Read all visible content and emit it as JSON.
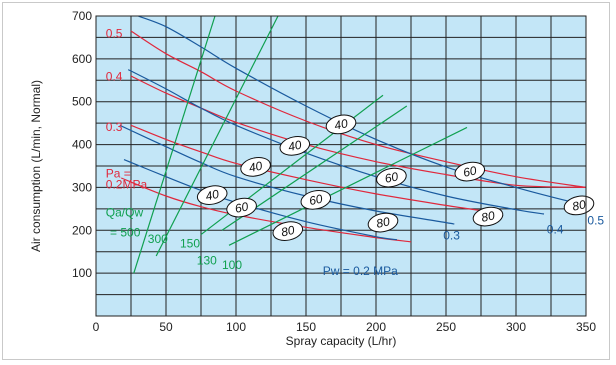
{
  "chart_data": {
    "type": "line",
    "xlabel": "Spray capacity (L/hr)",
    "ylabel": "Air consumption (L/min, Normal)",
    "xlim": [
      0,
      350
    ],
    "ylim": [
      0,
      700
    ],
    "x_ticks": [
      "0",
      "50",
      "100",
      "150",
      "200",
      "250",
      "300",
      "350"
    ],
    "y_ticks": [
      "100",
      "200",
      "300",
      "400",
      "500",
      "600",
      "700"
    ],
    "grid": true,
    "background_color": "#c3e6f7",
    "series_groups": [
      {
        "name": "Pa",
        "color": "#e0283c",
        "series": [
          {
            "name": "0.5",
            "points": [
              [
                25,
                665
              ],
              [
                50,
                612
              ],
              [
                75,
                570
              ],
              [
                100,
                525
              ],
              [
                150,
                455
              ],
              [
                200,
                400
              ],
              [
                250,
                360
              ],
              [
                300,
                325
              ],
              [
                350,
                300
              ]
            ]
          },
          {
            "name": "0.4",
            "points": [
              [
                25,
                560
              ],
              [
                50,
                520
              ],
              [
                75,
                485
              ],
              [
                100,
                452
              ],
              [
                150,
                400
              ],
              [
                200,
                360
              ],
              [
                250,
                330
              ],
              [
                300,
                305
              ],
              [
                350,
                300
              ]
            ]
          },
          {
            "name": "0.3",
            "points": [
              [
                25,
                445
              ],
              [
                50,
                412
              ],
              [
                75,
                383
              ],
              [
                100,
                356
              ],
              [
                150,
                318
              ],
              [
                200,
                285
              ],
              [
                250,
                258
              ],
              [
                275,
                246
              ]
            ]
          },
          {
            "name": "Pa = 0.2MPa",
            "points": [
              [
                18,
                322
              ],
              [
                50,
                280
              ],
              [
                75,
                255
              ],
              [
                100,
                236
              ],
              [
                150,
                207
              ],
              [
                200,
                183
              ],
              [
                225,
                173
              ]
            ]
          }
        ]
      },
      {
        "name": "Pw",
        "color": "#1a5a9e",
        "series": [
          {
            "name": "0.5",
            "points": [
              [
                30,
                700
              ],
              [
                50,
                675
              ],
              [
                75,
                628
              ],
              [
                100,
                578
              ],
              [
                150,
                490
              ],
              [
                200,
                412
              ],
              [
                250,
                348
              ],
              [
                300,
                300
              ],
              [
                335,
                270
              ],
              [
                355,
                255
              ]
            ]
          },
          {
            "name": "0.4",
            "points": [
              [
                23,
                575
              ],
              [
                50,
                530
              ],
              [
                75,
                485
              ],
              [
                100,
                445
              ],
              [
                150,
                380
              ],
              [
                200,
                325
              ],
              [
                250,
                280
              ],
              [
                300,
                248
              ],
              [
                320,
                238
              ]
            ]
          },
          {
            "name": "0.3",
            "points": [
              [
                17,
                445
              ],
              [
                50,
                395
              ],
              [
                75,
                358
              ],
              [
                100,
                325
              ],
              [
                150,
                280
              ],
              [
                200,
                245
              ],
              [
                250,
                218
              ],
              [
                255,
                215
              ]
            ]
          },
          {
            "name": "Pw = 0.2 MPa",
            "points": [
              [
                20,
                365
              ],
              [
                50,
                325
              ],
              [
                75,
                293
              ],
              [
                100,
                265
              ],
              [
                150,
                220
              ],
              [
                200,
                185
              ],
              [
                215,
                178
              ]
            ]
          }
        ]
      },
      {
        "name": "Qa/Qw",
        "color": "#10a050",
        "series": [
          {
            "name": "Qa/Qw = 500",
            "points": [
              [
                27,
                100
              ],
              [
                85,
                700
              ]
            ]
          },
          {
            "name": "300",
            "points": [
              [
                43,
                140
              ],
              [
                130,
                700
              ]
            ]
          },
          {
            "name": "150",
            "points": [
              [
                75,
                190
              ],
              [
                205,
                515
              ]
            ]
          },
          {
            "name": "130",
            "points": [
              [
                90,
                200
              ],
              [
                222,
                490
              ]
            ]
          },
          {
            "name": "100",
            "points": [
              [
                95,
                165
              ],
              [
                265,
                440
              ]
            ]
          }
        ]
      }
    ],
    "annotations": {
      "bubbles": [
        {
          "text": "40",
          "x": 175,
          "y": 447
        },
        {
          "text": "40",
          "x": 142,
          "y": 397
        },
        {
          "text": "40",
          "x": 114,
          "y": 348
        },
        {
          "text": "40",
          "x": 83,
          "y": 282
        },
        {
          "text": "60",
          "x": 104,
          "y": 253
        },
        {
          "text": "60",
          "x": 157,
          "y": 271
        },
        {
          "text": "60",
          "x": 211,
          "y": 323
        },
        {
          "text": "60",
          "x": 267,
          "y": 337
        },
        {
          "text": "80",
          "x": 137,
          "y": 198
        },
        {
          "text": "80",
          "x": 205,
          "y": 218
        },
        {
          "text": "80",
          "x": 280,
          "y": 232
        },
        {
          "text": "80",
          "x": 345,
          "y": 258
        }
      ],
      "labels": [
        {
          "text": "0.5",
          "color": "#e0283c",
          "x": 7,
          "y": 650
        },
        {
          "text": "0.4",
          "color": "#e0283c",
          "x": 7,
          "y": 550
        },
        {
          "text": "0.3",
          "color": "#e0283c",
          "x": 7,
          "y": 432
        },
        {
          "text": "Pa =",
          "color": "#e0283c",
          "x": 7,
          "y": 323
        },
        {
          "text": "0.2MPa",
          "color": "#e0283c",
          "x": 7,
          "y": 298
        },
        {
          "text": "Qa/Qw",
          "color": "#10a050",
          "x": 7,
          "y": 232
        },
        {
          "text": "= 500",
          "color": "#10a050",
          "x": 10,
          "y": 185
        },
        {
          "text": "300",
          "color": "#10a050",
          "x": 37,
          "y": 170
        },
        {
          "text": "150",
          "color": "#10a050",
          "x": 60,
          "y": 160
        },
        {
          "text": "130",
          "color": "#10a050",
          "x": 72,
          "y": 120
        },
        {
          "text": "100",
          "color": "#10a050",
          "x": 90,
          "y": 110
        },
        {
          "text": "Pw = 0.2 MPa",
          "color": "#1a5a9e",
          "x": 162,
          "y": 96
        },
        {
          "text": "0.3",
          "color": "#1a5a9e",
          "x": 248,
          "y": 178
        },
        {
          "text": "0.4",
          "color": "#1a5a9e",
          "x": 322,
          "y": 192
        },
        {
          "text": "0.5",
          "color": "#1a5a9e",
          "x": 351,
          "y": 213
        }
      ]
    }
  }
}
